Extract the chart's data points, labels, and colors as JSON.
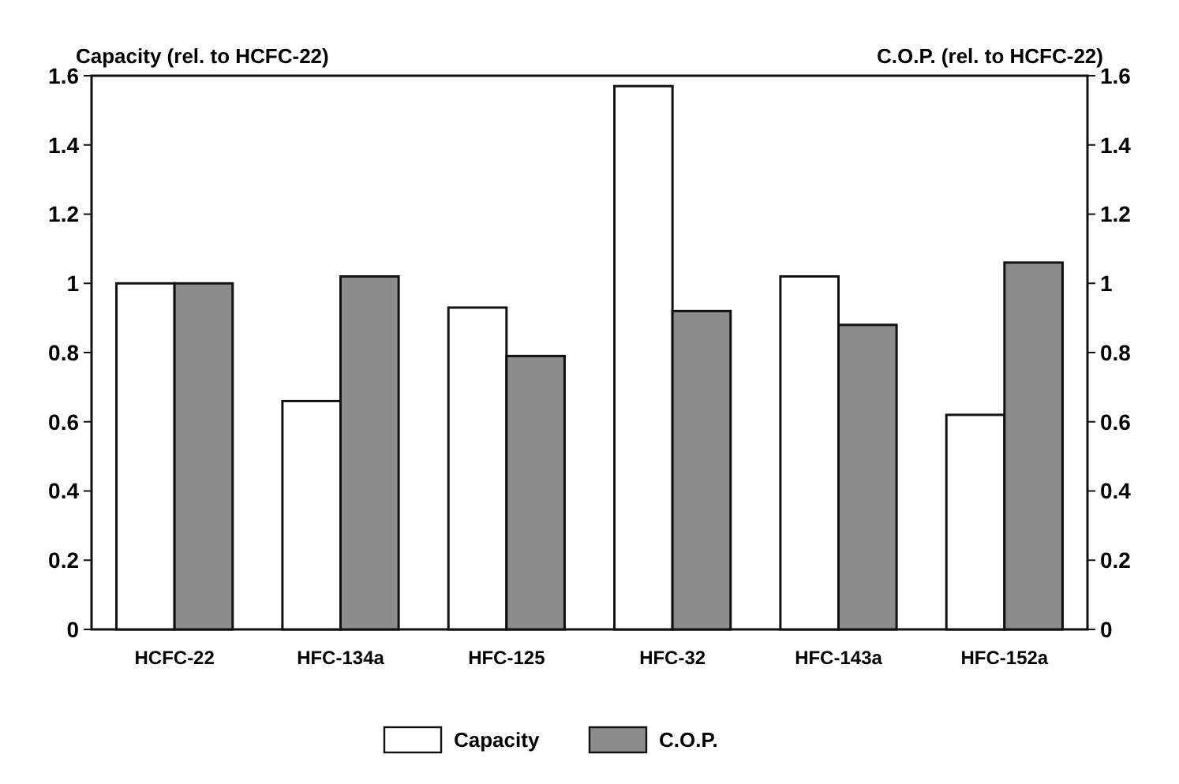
{
  "chart_data": {
    "type": "bar",
    "categories": [
      "HCFC-22",
      "HFC-134a",
      "HFC-125",
      "HFC-32",
      "HFC-143a",
      "HFC-152a"
    ],
    "series": [
      {
        "name": "Capacity",
        "color": "#ffffff",
        "values": [
          1.0,
          0.66,
          0.93,
          1.57,
          1.02,
          0.62
        ]
      },
      {
        "name": "C.O.P.",
        "color": "#8c8c8c",
        "axis": "y2",
        "values": [
          1.0,
          1.02,
          0.79,
          0.92,
          0.88,
          1.06
        ]
      }
    ],
    "ylabel": "Capacity (rel. to HCFC-22)",
    "y2label": "C.O.P. (rel. to HCFC-22)",
    "ylim": [
      0,
      1.6
    ],
    "yticks": [
      0,
      0.2,
      0.4,
      0.6,
      0.8,
      1,
      1.2,
      1.4,
      1.6
    ],
    "y2lim": [
      0,
      1.6
    ],
    "y2ticks": [
      0,
      0.2,
      0.4,
      0.6,
      0.8,
      1,
      1.2,
      1.4,
      1.6
    ],
    "legend": "bottom",
    "grid": false
  }
}
